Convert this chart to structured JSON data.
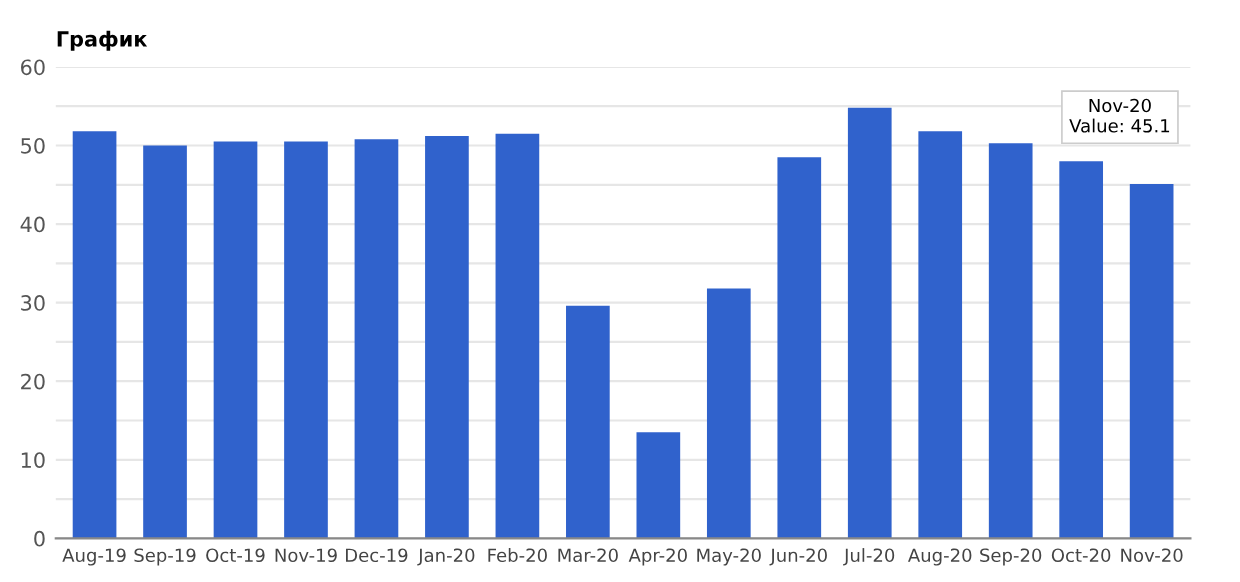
{
  "chart_data": {
    "type": "bar",
    "title": "График",
    "categories": [
      "Aug-19",
      "Sep-19",
      "Oct-19",
      "Nov-19",
      "Dec-19",
      "Jan-20",
      "Feb-20",
      "Mar-20",
      "Apr-20",
      "May-20",
      "Jun-20",
      "Jul-20",
      "Aug-20",
      "Sep-20",
      "Oct-20",
      "Nov-20"
    ],
    "values": [
      51.8,
      50.0,
      50.5,
      50.5,
      50.8,
      51.2,
      51.5,
      29.6,
      13.5,
      31.8,
      48.5,
      54.8,
      51.8,
      50.3,
      48.0,
      45.1
    ],
    "color": "#3062cc",
    "ylim": [
      0,
      60
    ],
    "yticks": [
      0,
      {
        "value": 5,
        "label": null
      },
      10,
      {
        "value": 15,
        "label": null
      },
      20,
      {
        "value": 25,
        "label": null
      },
      30,
      {
        "value": 35,
        "label": null
      },
      40,
      {
        "value": 45,
        "label": null
      },
      50,
      {
        "value": 55,
        "label": null
      },
      60
    ],
    "grid": "y",
    "annotations": [
      {
        "text": "Nov-20\nValue: 45.1",
        "x": "Nov-20",
        "y": 45.1
      }
    ]
  }
}
